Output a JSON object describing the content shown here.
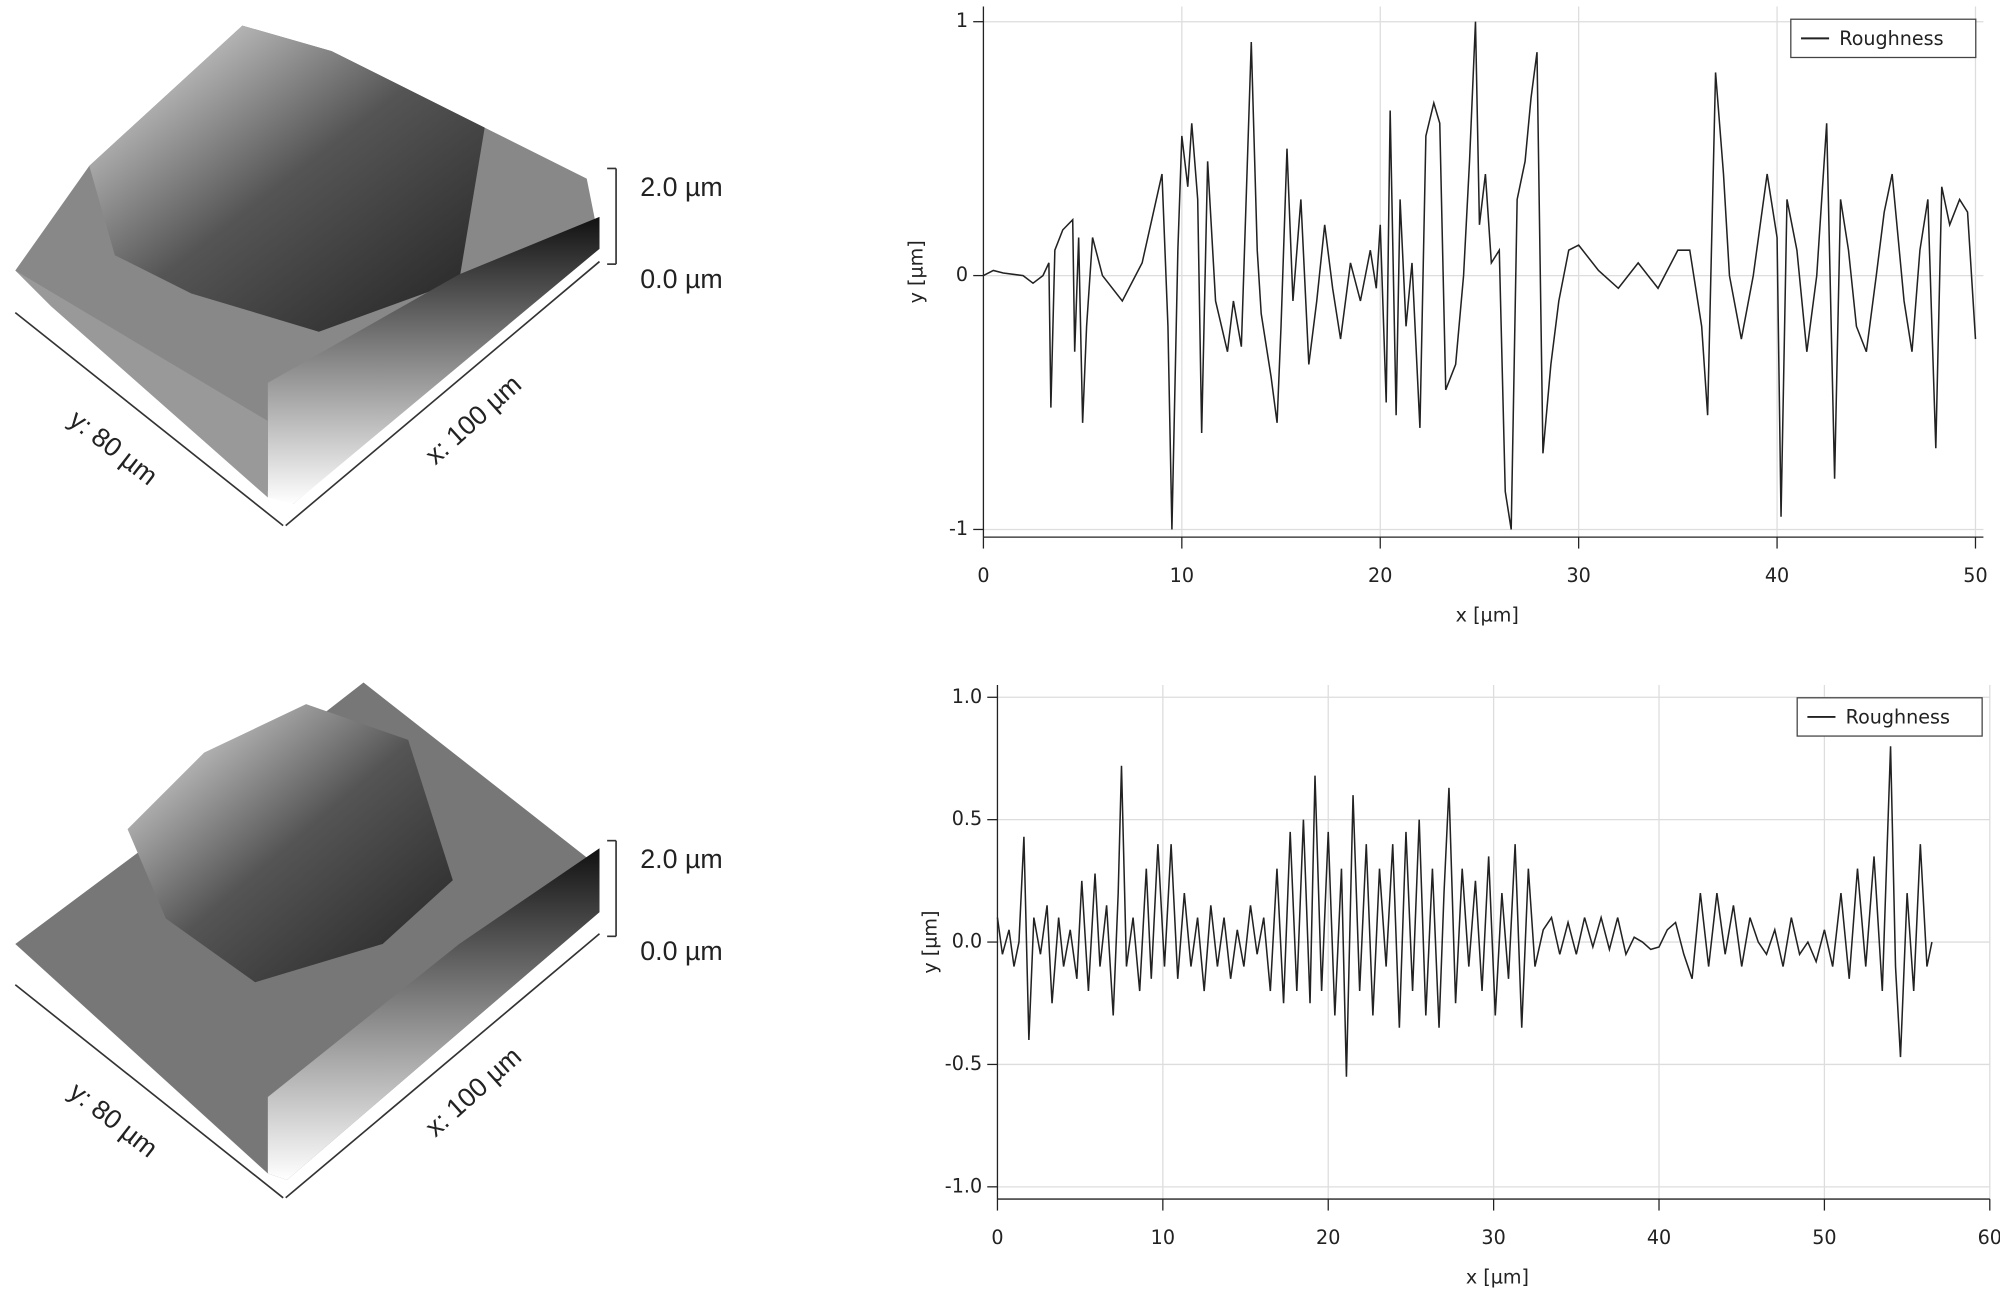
{
  "chart_data": [
    {
      "type": "surface3d",
      "xlabel": "x: 100 µm",
      "ylabel": "y: 80 µm",
      "zlim": [
        0,
        2
      ],
      "zticks": [
        {
          "value": 2,
          "label": "2.0 µm"
        },
        {
          "value": 0,
          "label": "0.0 µm"
        }
      ]
    },
    {
      "type": "line",
      "xlabel": "x [µm]",
      "ylabel": "y [µm]",
      "xlim": [
        0,
        50.4
      ],
      "ylim": [
        -1.03,
        1.06
      ],
      "xticks": [
        0,
        10,
        20,
        30,
        40,
        50
      ],
      "yticks": [
        -1,
        0,
        1
      ],
      "grid": true,
      "legend": "upper right",
      "x": [
        0,
        0.5,
        1,
        2,
        2.5,
        3,
        3.3,
        3.4,
        3.6,
        4,
        4.5,
        4.6,
        4.8,
        5,
        5.2,
        5.5,
        6,
        7,
        8,
        9,
        9.3,
        9.5,
        9.8,
        10,
        10.3,
        10.5,
        10.8,
        11,
        11.3,
        11.7,
        12,
        12.3,
        12.6,
        13,
        13.5,
        13.8,
        14,
        14.5,
        14.8,
        15,
        15.3,
        15.6,
        16,
        16.4,
        16.8,
        17.2,
        17.6,
        18,
        18.5,
        19,
        19.5,
        19.8,
        20,
        20.3,
        20.5,
        20.8,
        21,
        21.3,
        21.6,
        22,
        22.3,
        22.7,
        23,
        23.3,
        23.8,
        24.2,
        24.5,
        24.8,
        25,
        25.3,
        25.6,
        26,
        26.3,
        26.6,
        26.9,
        27.3,
        27.6,
        27.9,
        28.2,
        28.6,
        29,
        29.5,
        30,
        31,
        32,
        33,
        34,
        35,
        35.6,
        36.2,
        36.5,
        36.9,
        37.3,
        37.6,
        38.2,
        38.8,
        39.5,
        40,
        40.2,
        40.5,
        41,
        41.5,
        42,
        42.5,
        42.9,
        43.2,
        43.6,
        44,
        44.5,
        45,
        45.4,
        45.8,
        46.4,
        46.8,
        47.2,
        47.6,
        48,
        48.3,
        48.7,
        49.2,
        49.6,
        50
      ],
      "series": [
        {
          "name": "Roughness",
          "color": "#222222",
          "values": [
            0,
            0.02,
            0.01,
            0,
            -0.03,
            0,
            0.05,
            -0.52,
            0.1,
            0.18,
            0.22,
            -0.3,
            0.15,
            -0.58,
            -0.2,
            0.15,
            0,
            -0.1,
            0.05,
            0.4,
            -0.2,
            -1,
            0.1,
            0.55,
            0.35,
            0.6,
            0.3,
            -0.62,
            0.45,
            -0.1,
            -0.2,
            -0.3,
            -0.1,
            -0.28,
            0.92,
            0.1,
            -0.15,
            -0.4,
            -0.58,
            -0.2,
            0.5,
            -0.1,
            0.3,
            -0.35,
            -0.1,
            0.2,
            -0.05,
            -0.25,
            0.05,
            -0.1,
            0.1,
            -0.05,
            0.2,
            -0.5,
            0.65,
            -0.55,
            0.3,
            -0.2,
            0.05,
            -0.6,
            0.55,
            0.68,
            0.6,
            -0.45,
            -0.35,
            0,
            0.45,
            1,
            0.2,
            0.4,
            0.05,
            0.1,
            -0.85,
            -1,
            0.3,
            0.45,
            0.7,
            0.88,
            -0.7,
            -0.35,
            -0.1,
            0.1,
            0.12,
            0.02,
            -0.05,
            0.05,
            -0.05,
            0.1,
            0.1,
            -0.2,
            -0.55,
            0.8,
            0.4,
            0,
            -0.25,
            0,
            0.4,
            0.15,
            -0.95,
            0.3,
            0.1,
            -0.3,
            0,
            0.6,
            -0.8,
            0.3,
            0.1,
            -0.2,
            -0.3,
            0,
            0.25,
            0.4,
            -0.1,
            -0.3,
            0.1,
            0.3,
            -0.68,
            0.35,
            0.2,
            0.3,
            0.25,
            -0.25
          ]
        }
      ]
    },
    {
      "type": "surface3d",
      "xlabel": "x: 100 µm",
      "ylabel": "y: 80 µm",
      "zlim": [
        0,
        2
      ],
      "zticks": [
        {
          "value": 2,
          "label": "2.0 µm"
        },
        {
          "value": 0,
          "label": "0.0 µm"
        }
      ]
    },
    {
      "type": "line",
      "xlabel": "x [µm]",
      "ylabel": "y [µm]",
      "xlim": [
        0,
        60
      ],
      "ylim": [
        -1.05,
        1.05
      ],
      "xticks": [
        0,
        10,
        20,
        30,
        40,
        50,
        60
      ],
      "yticks": [
        {
          "value": -1,
          "label": "-1.0"
        },
        -0.5,
        {
          "value": 0,
          "label": "0.0"
        },
        0.5,
        {
          "value": 1,
          "label": "1.0"
        }
      ],
      "grid": true,
      "legend": "upper right",
      "x": [
        0,
        0.3,
        0.7,
        1.0,
        1.3,
        1.6,
        1.9,
        2.2,
        2.6,
        3.0,
        3.3,
        3.7,
        4.0,
        4.4,
        4.8,
        5.1,
        5.5,
        5.9,
        6.2,
        6.6,
        7.0,
        7.3,
        7.5,
        7.8,
        8.2,
        8.6,
        9.0,
        9.3,
        9.7,
        10.1,
        10.5,
        10.9,
        11.3,
        11.7,
        12.1,
        12.5,
        12.9,
        13.3,
        13.7,
        14.1,
        14.5,
        14.9,
        15.3,
        15.7,
        16.1,
        16.5,
        16.9,
        17.3,
        17.7,
        18.1,
        18.5,
        18.9,
        19.2,
        19.6,
        20.0,
        20.4,
        20.8,
        21.1,
        21.5,
        21.9,
        22.3,
        22.7,
        23.1,
        23.5,
        23.9,
        24.3,
        24.7,
        25.1,
        25.5,
        25.9,
        26.3,
        26.7,
        27.0,
        27.3,
        27.7,
        28.1,
        28.5,
        28.9,
        29.3,
        29.7,
        30.1,
        30.5,
        30.9,
        31.3,
        31.7,
        32.1,
        32.5,
        33.0,
        33.5,
        34.0,
        34.5,
        35.0,
        35.5,
        36.0,
        36.5,
        37.0,
        37.5,
        38.0,
        38.5,
        39.0,
        39.5,
        40.0,
        40.5,
        41.0,
        41.5,
        42.0,
        42.5,
        43.0,
        43.5,
        44.0,
        44.5,
        45.0,
        45.5,
        46.0,
        46.5,
        47.0,
        47.5,
        48.0,
        48.5,
        49.0,
        49.5,
        50.0,
        50.5,
        51.0,
        51.5,
        52.0,
        52.5,
        53.0,
        53.5,
        54.0,
        54.3,
        54.6,
        55.0,
        55.4,
        55.8,
        56.2,
        56.5
      ],
      "series": [
        {
          "name": "Roughness",
          "color": "#222222",
          "values": [
            0.1,
            -0.05,
            0.05,
            -0.1,
            0.0,
            0.43,
            -0.4,
            0.1,
            -0.05,
            0.15,
            -0.25,
            0.1,
            -0.1,
            0.05,
            -0.15,
            0.25,
            -0.2,
            0.28,
            -0.1,
            0.15,
            -0.3,
            0.2,
            0.72,
            -0.1,
            0.1,
            -0.2,
            0.3,
            -0.15,
            0.4,
            -0.1,
            0.4,
            -0.15,
            0.2,
            -0.1,
            0.1,
            -0.2,
            0.15,
            -0.1,
            0.1,
            -0.15,
            0.05,
            -0.1,
            0.15,
            -0.05,
            0.1,
            -0.2,
            0.3,
            -0.25,
            0.45,
            -0.2,
            0.5,
            -0.25,
            0.68,
            -0.2,
            0.45,
            -0.3,
            0.3,
            -0.55,
            0.6,
            -0.2,
            0.4,
            -0.3,
            0.3,
            -0.1,
            0.4,
            -0.35,
            0.45,
            -0.2,
            0.5,
            -0.3,
            0.3,
            -0.35,
            0.2,
            0.63,
            -0.25,
            0.3,
            -0.1,
            0.25,
            -0.2,
            0.35,
            -0.3,
            0.2,
            -0.15,
            0.4,
            -0.35,
            0.3,
            -0.1,
            0.05,
            0.1,
            -0.05,
            0.08,
            -0.05,
            0.1,
            -0.02,
            0.1,
            -0.03,
            0.1,
            -0.05,
            0.02,
            0.0,
            -0.03,
            -0.02,
            0.05,
            0.08,
            -0.05,
            -0.15,
            0.2,
            -0.1,
            0.2,
            -0.05,
            0.15,
            -0.1,
            0.1,
            0.0,
            -0.05,
            0.05,
            -0.1,
            0.1,
            -0.05,
            0.0,
            -0.08,
            0.05,
            -0.1,
            0.2,
            -0.15,
            0.3,
            -0.1,
            0.35,
            -0.2,
            0.8,
            -0.1,
            -0.47,
            0.2,
            -0.2,
            0.4,
            -0.1,
            0.0
          ]
        }
      ]
    }
  ]
}
